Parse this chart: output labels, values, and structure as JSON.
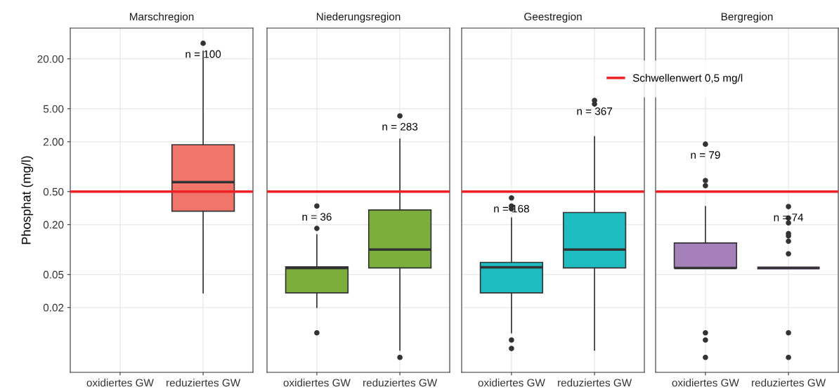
{
  "chart_data": [
    {
      "type": "box",
      "title": "Marschregion",
      "ylabel": "Phosphat (mg/l)",
      "categories": [
        "oxidiertes GW",
        "reduziertes GW"
      ],
      "log": true,
      "grid": true,
      "ylim": [
        0.0033,
        47
      ],
      "yticks": [
        {
          "value": 0.02,
          "label": "0.02"
        },
        {
          "value": 0.05,
          "label": "0.05"
        },
        {
          "value": 0.2,
          "label": "0.20"
        },
        {
          "value": 0.5,
          "label": "0.50"
        },
        {
          "value": 2,
          "label": "2.00"
        },
        {
          "value": 5,
          "label": "5.00"
        },
        {
          "value": 20,
          "label": "20.00"
        }
      ],
      "series": [
        {
          "color": "#f2756c",
          "boxes": [
            null,
            {
              "low": 0.03,
              "q1": 0.29,
              "median": 0.65,
              "q3": 1.84,
              "high": 24.8,
              "outliers": [
                30.8
              ]
            }
          ]
        }
      ],
      "ref_lines": [
        {
          "axis": "y",
          "value": 0.5,
          "color": "#ee2024"
        }
      ],
      "annotations": [
        "n = 100"
      ]
    },
    {
      "type": "box",
      "title": "Niederungsregion",
      "categories": [
        "oxidiertes GW",
        "reduziertes GW"
      ],
      "log": true,
      "grid": true,
      "ylim": [
        0.0033,
        47
      ],
      "tick_labels": "x",
      "yticks": [
        0.02,
        0.05,
        0.2,
        0.5,
        2,
        5,
        20
      ],
      "series": [
        {
          "color": "#7cae3e",
          "boxes": [
            {
              "low": 0.02,
              "q1": 0.03,
              "median": 0.06,
              "q3": 0.062,
              "high": 0.15,
              "outliers": [
                0.18,
                0.335,
                0.0099
              ]
            },
            {
              "low": 0.0061,
              "q1": 0.06,
              "median": 0.1,
              "q3": 0.3,
              "high": 2.15,
              "outliers": [
                4.1,
                0.005
              ]
            }
          ]
        }
      ],
      "ref_lines": [
        {
          "axis": "y",
          "value": 0.5,
          "color": "#ee2024"
        }
      ],
      "annotations": [
        "n = 36",
        "n = 283"
      ]
    },
    {
      "type": "box",
      "title": "Geestregion",
      "categories": [
        "oxidiertes GW",
        "reduziertes GW"
      ],
      "log": true,
      "grid": true,
      "ylim": [
        0.0033,
        47
      ],
      "tick_labels": "x",
      "yticks": [
        0.02,
        0.05,
        0.2,
        0.5,
        2,
        5,
        20
      ],
      "series": [
        {
          "color": "#1fbcc1",
          "boxes": [
            {
              "low": 0.0099,
              "q1": 0.03,
              "median": 0.061,
              "q3": 0.07,
              "high": 0.24,
              "outliers": [
                0.42,
                0.335,
                0.31,
                0.0081,
                0.0064
              ]
            },
            {
              "low": 0.0061,
              "q1": 0.06,
              "median": 0.1,
              "q3": 0.28,
              "high": 2.3,
              "outliers": [
                6.3,
                5.7
              ]
            }
          ]
        }
      ],
      "ref_lines": [
        {
          "axis": "y",
          "value": 0.5,
          "color": "#ee2024",
          "label": "Schwellenwert 0,5 mg/l"
        }
      ],
      "legend": "top right",
      "annotations": [
        "n = 168",
        "n = 367"
      ]
    },
    {
      "type": "box",
      "title": "Bergregion",
      "categories": [
        "oxidiertes GW",
        "reduziertes GW"
      ],
      "log": true,
      "grid": true,
      "ylim": [
        0.0033,
        47
      ],
      "tick_labels": "x",
      "yticks": [
        0.02,
        0.05,
        0.2,
        0.5,
        2,
        5,
        20
      ],
      "series": [
        {
          "color": "#a680b8",
          "boxes": [
            {
              "low": 0.06,
              "q1": 0.06,
              "median": 0.06,
              "q3": 0.12,
              "high": 0.33,
              "outliers": [
                1.87,
                0.68,
                0.59,
                0.0099,
                0.0081,
                0.005
              ]
            },
            {
              "low": 0.06,
              "q1": 0.06,
              "median": 0.06,
              "q3": 0.06,
              "high": 0.06,
              "outliers": [
                0.33,
                0.24,
                0.21,
                0.156,
                0.146,
                0.126,
                0.089,
                0.0099,
                0.005
              ]
            }
          ]
        }
      ],
      "ref_lines": [
        {
          "axis": "y",
          "value": 0.5,
          "color": "#ee2024"
        }
      ],
      "annotations": [
        "n = 79",
        "n = 74"
      ]
    }
  ]
}
